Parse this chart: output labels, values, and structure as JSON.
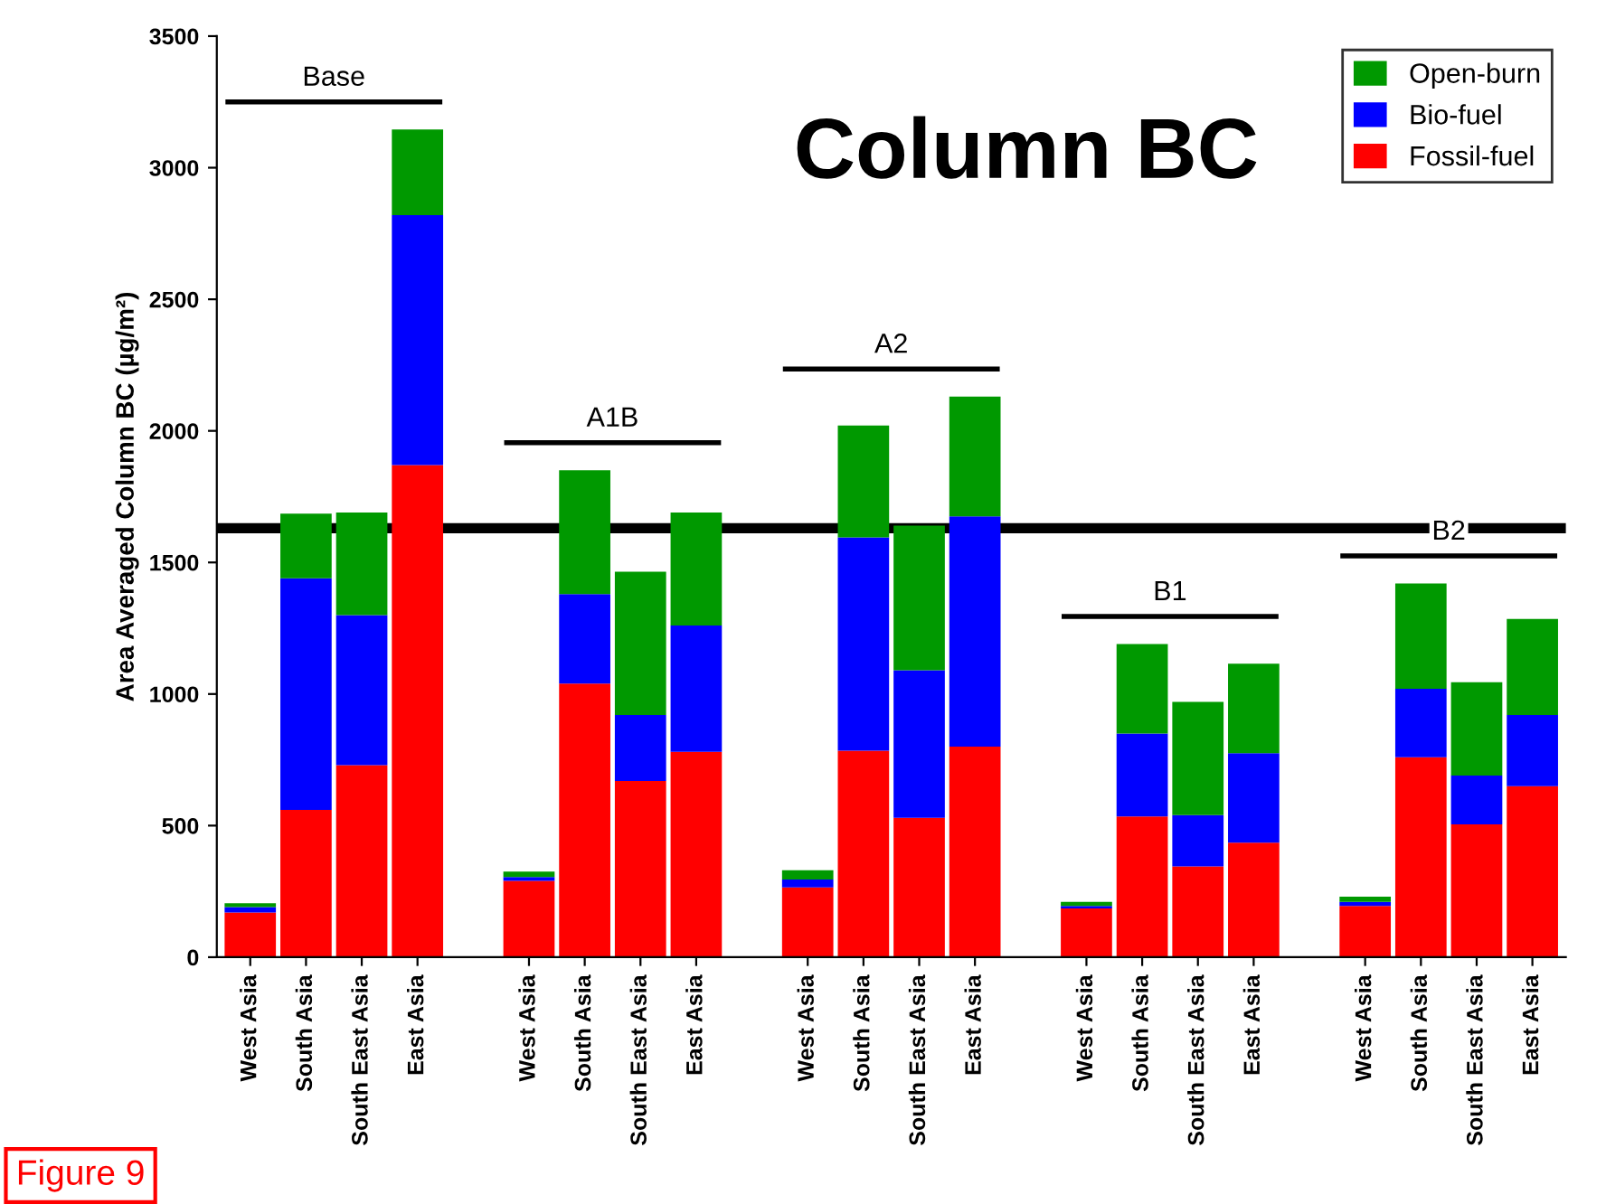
{
  "chart_data": {
    "type": "bar",
    "title": "Column BC",
    "ylabel": "Area Averaged Column BC (µg/m²)",
    "categories": [
      "West Asia",
      "South Asia",
      "South East Asia",
      "East Asia",
      null,
      "West Asia",
      "South Asia",
      "South East Asia",
      "East Asia",
      null,
      "West Asia",
      "South Asia",
      "South East Asia",
      "East Asia",
      null,
      "West Asia",
      "South Asia",
      "South East Asia",
      "East Asia",
      null,
      "West Asia",
      "South Asia",
      "South East Asia",
      "East Asia"
    ],
    "stacked": true,
    "series": [
      {
        "name": "Fossil-fuel",
        "color": "#ff0000",
        "values": [
          170,
          560,
          730,
          1870,
          null,
          290,
          1040,
          670,
          780,
          null,
          265,
          785,
          530,
          800,
          null,
          185,
          535,
          345,
          435,
          null,
          195,
          760,
          505,
          650
        ]
      },
      {
        "name": "Bio-fuel",
        "color": "#0000ff",
        "values": [
          20,
          880,
          570,
          950,
          null,
          15,
          340,
          250,
          480,
          null,
          30,
          810,
          560,
          875,
          null,
          10,
          315,
          195,
          340,
          null,
          15,
          260,
          185,
          270
        ]
      },
      {
        "name": "Open-burn",
        "color": "#009900",
        "values": [
          15,
          245,
          390,
          325,
          null,
          20,
          470,
          545,
          430,
          null,
          35,
          425,
          550,
          455,
          null,
          15,
          340,
          430,
          340,
          null,
          20,
          400,
          355,
          365
        ]
      }
    ],
    "ylim": [
      0,
      3500
    ],
    "yticks": [
      0,
      500,
      1000,
      1500,
      2000,
      2500,
      3000,
      3500
    ],
    "ref_lines": [
      {
        "axis": "y",
        "value": 1630,
        "color": "#000000"
      }
    ],
    "annotations": [
      "Base",
      "A1B",
      "A2",
      "B1",
      "B2",
      "Figure 9"
    ],
    "legend": "top right",
    "grid": false
  }
}
